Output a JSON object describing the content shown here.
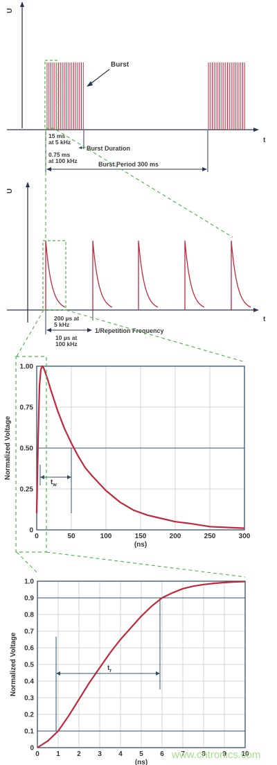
{
  "colors": {
    "pulse": "#c0273b",
    "axis": "#2b3550",
    "plot_frame": "#31506e",
    "grid": "#c9c9c9",
    "zoom_guide": "#49b447",
    "label": "#3a3a3a",
    "watermark": "#a3e08a"
  },
  "panel1": {
    "y_axis_label": "U",
    "x_axis_label": "t",
    "burst_label": "Burst",
    "burst_duration_a": "15 ms",
    "burst_duration_a2": "at 5 kHz",
    "burst_duration_b": "0.75 ms",
    "burst_duration_b2": "at 100 kHz",
    "burst_duration_label": "Burst Duration",
    "burst_period_label": "Burst Period 300 ms"
  },
  "panel2": {
    "y_axis_label": "U",
    "x_axis_label": "t",
    "spacing_a": "200 µs at",
    "spacing_a2": "5 kHz",
    "spacing_b": "10 µs at",
    "spacing_b2": "100 kHz",
    "repetition_label": "1/Repetition Frequency"
  },
  "chart_data": [
    {
      "type": "line",
      "xlabel": "(ns)",
      "ylabel": "Normalized Voltage",
      "xlim": [
        0,
        300
      ],
      "ylim": [
        0,
        1.0
      ],
      "x_ticks": [
        "0",
        "50",
        "100",
        "150",
        "200",
        "250",
        "300"
      ],
      "y_ticks": [
        "0",
        "0.25",
        "0.50",
        "0.75",
        "1.00"
      ],
      "annotation": "tw",
      "annotation_sub": "w",
      "annotation_main": "t",
      "series": [
        {
          "x": [
            0,
            2,
            4,
            6,
            8,
            10,
            15,
            20,
            30,
            40,
            50,
            60,
            70,
            80,
            100,
            120,
            140,
            160,
            180,
            200,
            220,
            250,
            300
          ],
          "y": [
            0.1,
            0.55,
            0.88,
            0.98,
            1.0,
            0.99,
            0.93,
            0.86,
            0.73,
            0.62,
            0.53,
            0.45,
            0.38,
            0.33,
            0.24,
            0.17,
            0.12,
            0.09,
            0.07,
            0.05,
            0.04,
            0.02,
            0.01
          ]
        }
      ],
      "reference_line_y": 0.5,
      "marker_x": [
        5,
        50
      ]
    },
    {
      "type": "line",
      "xlabel": "(ns)",
      "ylabel": "Normalized Voltage",
      "xlim": [
        0,
        10
      ],
      "ylim": [
        0,
        1.0
      ],
      "x_ticks": [
        "0",
        "1",
        "2",
        "3",
        "4",
        "5",
        "6",
        "7",
        "8",
        "9",
        "10"
      ],
      "y_ticks": [
        "0",
        "0.1",
        "0.2",
        "0.3",
        "0.4",
        "0.5",
        "0.6",
        "0.7",
        "0.8",
        "0.9",
        "1.0"
      ],
      "annotation_main": "t",
      "annotation_sub": "r",
      "series": [
        {
          "x": [
            0,
            0.5,
            1,
            1.5,
            2,
            2.5,
            3,
            3.5,
            4,
            4.5,
            5,
            5.5,
            6,
            6.5,
            7,
            7.5,
            8,
            8.5,
            9,
            9.5,
            10
          ],
          "y": [
            0,
            0.04,
            0.1,
            0.19,
            0.29,
            0.39,
            0.48,
            0.57,
            0.65,
            0.72,
            0.79,
            0.85,
            0.9,
            0.93,
            0.955,
            0.97,
            0.98,
            0.987,
            0.992,
            0.996,
            0.998
          ]
        }
      ],
      "reference_lines_y": [
        0.1,
        0.9
      ],
      "marker_x": [
        0.9,
        5.9
      ]
    }
  ],
  "watermark": "www.cntronics.com"
}
